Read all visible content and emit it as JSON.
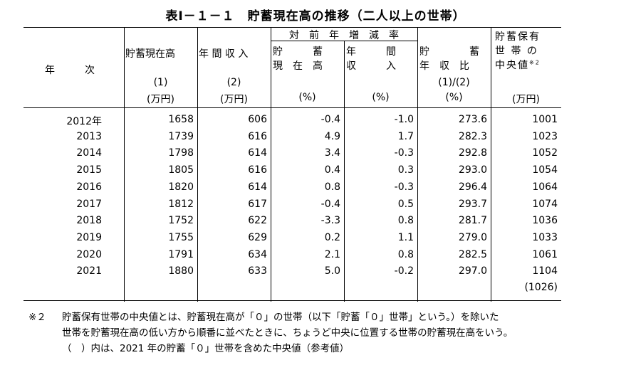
{
  "title": "表Ⅰ－１－１　貯蓄現在高の推移（二人以上の世帯）",
  "header": {
    "year": "年　　　次",
    "savings": "貯蓄現在高",
    "income": "年 間 収 入",
    "yoy": "対　前　年　増　減　率",
    "yoy_savings_1": "貯　　　蓄",
    "yoy_savings_2": "現　在　高",
    "yoy_income_1": "年　　　間",
    "yoy_income_2": "収　　　入",
    "ratio_1": "貯　　　　蓄",
    "ratio_2": "年　収　比",
    "median_1": "貯蓄保有",
    "median_2": "世 帯 の",
    "median_3": "中央値",
    "median_sup": "※2",
    "savings_num": "(1)",
    "income_num": "(2)",
    "ratio_num": "(1)/(2)",
    "unit_man": "(万円)",
    "unit_pct": "(%)"
  },
  "rows": [
    {
      "year": "2012年",
      "savings": "1658",
      "income": "606",
      "yoy_s": "-0.4",
      "yoy_i": "-1.0",
      "ratio": "273.6",
      "median": "1001"
    },
    {
      "year": "2013",
      "savings": "1739",
      "income": "616",
      "yoy_s": "4.9",
      "yoy_i": "1.7",
      "ratio": "282.3",
      "median": "1023"
    },
    {
      "year": "2014",
      "savings": "1798",
      "income": "614",
      "yoy_s": "3.4",
      "yoy_i": "-0.3",
      "ratio": "292.8",
      "median": "1052"
    },
    {
      "year": "2015",
      "savings": "1805",
      "income": "616",
      "yoy_s": "0.4",
      "yoy_i": "0.3",
      "ratio": "293.0",
      "median": "1054"
    },
    {
      "year": "2016",
      "savings": "1820",
      "income": "614",
      "yoy_s": "0.8",
      "yoy_i": "-0.3",
      "ratio": "296.4",
      "median": "1064"
    },
    {
      "year": "2017",
      "savings": "1812",
      "income": "617",
      "yoy_s": "-0.4",
      "yoy_i": "0.5",
      "ratio": "293.7",
      "median": "1074"
    },
    {
      "year": "2018",
      "savings": "1752",
      "income": "622",
      "yoy_s": "-3.3",
      "yoy_i": "0.8",
      "ratio": "281.7",
      "median": "1036"
    },
    {
      "year": "2019",
      "savings": "1755",
      "income": "629",
      "yoy_s": "0.2",
      "yoy_i": "1.1",
      "ratio": "279.0",
      "median": "1033"
    },
    {
      "year": "2020",
      "savings": "1791",
      "income": "634",
      "yoy_s": "2.1",
      "yoy_i": "0.8",
      "ratio": "282.5",
      "median": "1061"
    },
    {
      "year": "2021",
      "savings": "1880",
      "income": "633",
      "yoy_s": "5.0",
      "yoy_i": "-0.2",
      "ratio": "297.0",
      "median": "1104"
    }
  ],
  "median_ref_2021": "(1026)",
  "notes": {
    "mark": "※２",
    "line1": "貯蓄保有世帯の中央値とは、貯蓄現在高が「０」の世帯（以下「貯蓄「０」世帯」という。）を除いた",
    "line2": "世帯を貯蓄現在高の低い方から順番に並べたときに、ちょうど中央に位置する世帯の貯蓄現在高をいう。",
    "line3": "（　）内は、2021 年の貯蓄「０」世帯を含めた中央値（参考値）"
  }
}
